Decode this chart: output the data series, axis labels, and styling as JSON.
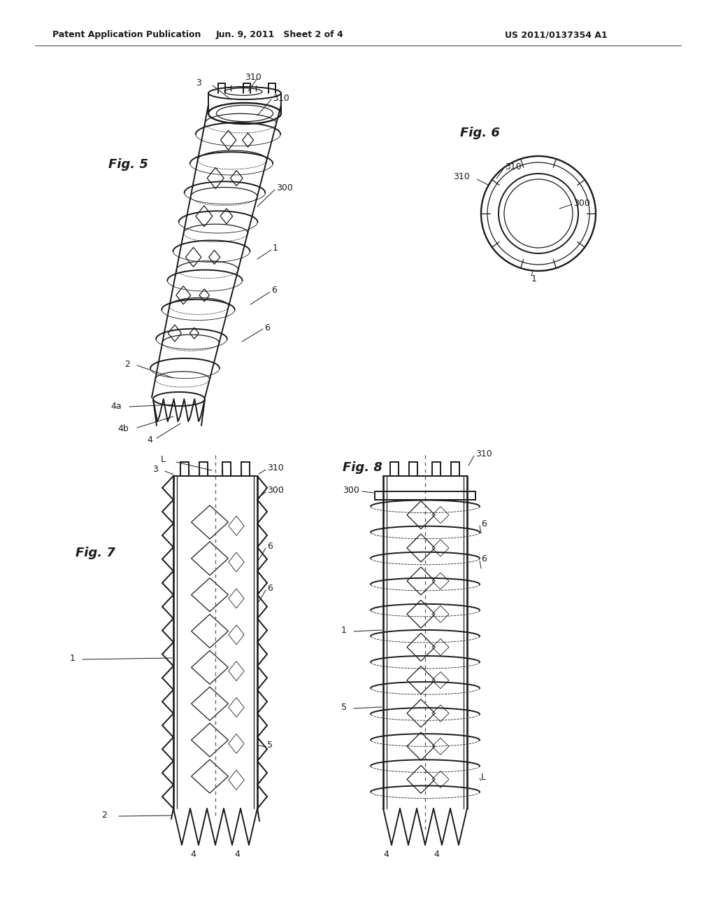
{
  "bg": "#ffffff",
  "lc": "#1a1a1a",
  "header_left": "Patent Application Publication",
  "header_center": "Jun. 9, 2011   Sheet 2 of 4",
  "header_right": "US 2011/0137354 A1",
  "fig5_label": "Fig. 5",
  "fig6_label": "Fig. 6",
  "fig7_label": "Fig. 7",
  "fig8_label": "Fig. 8"
}
